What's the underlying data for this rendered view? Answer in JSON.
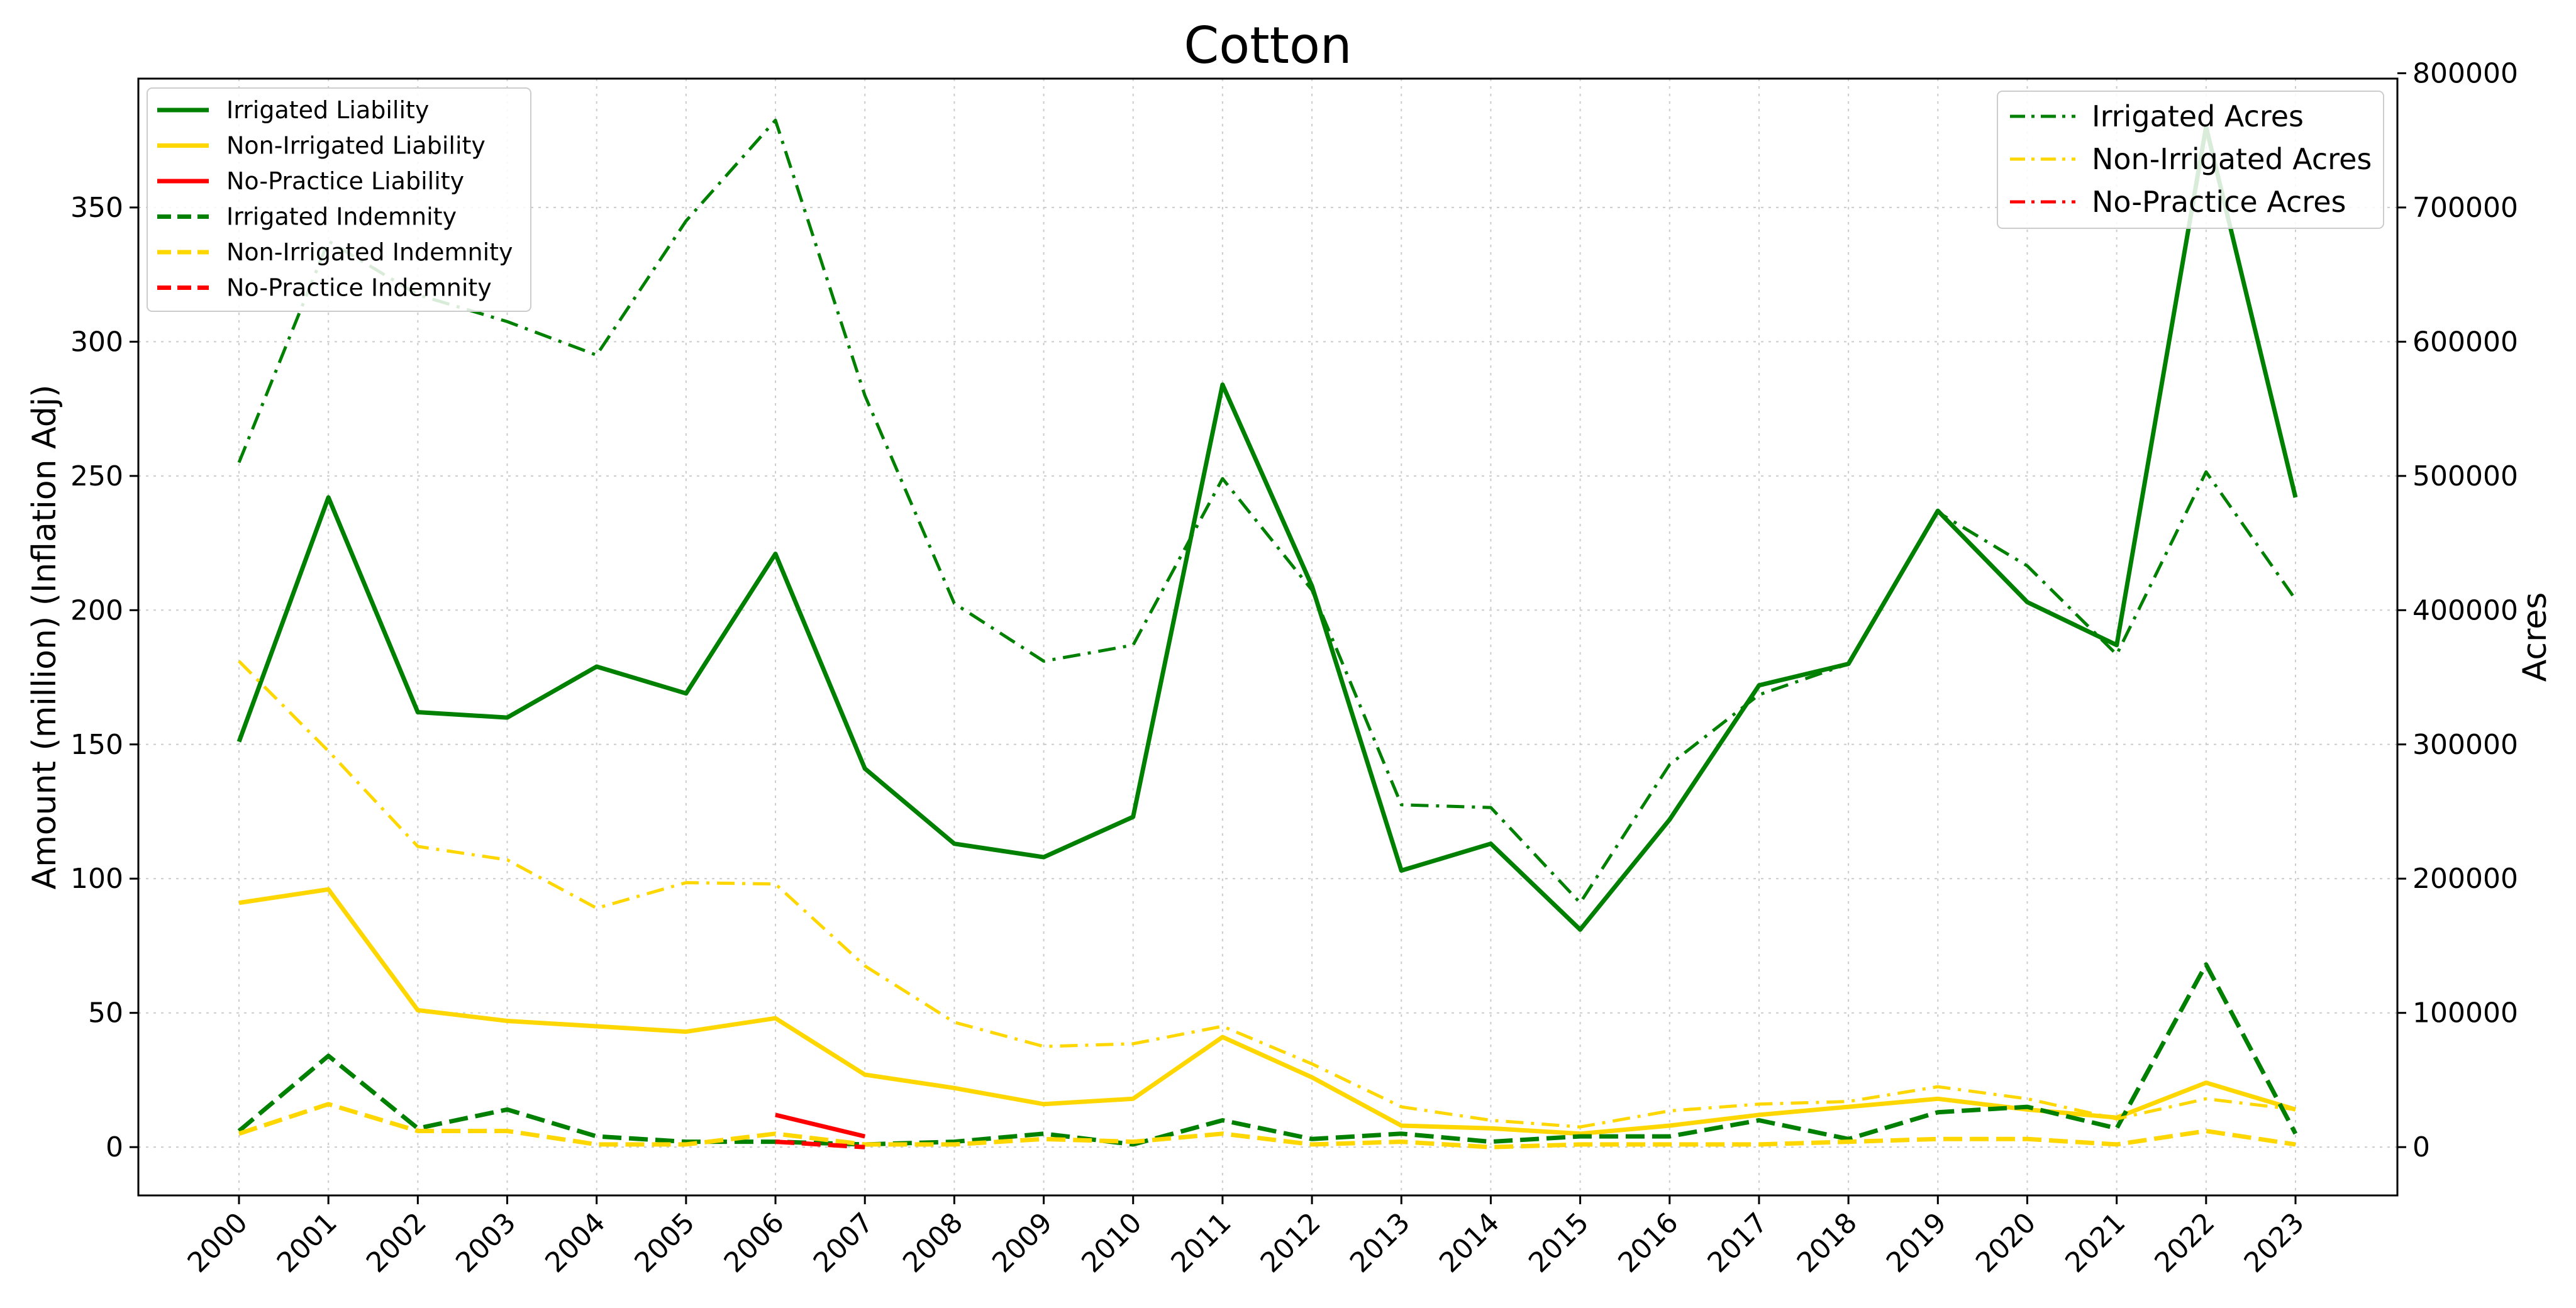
{
  "chart_data": {
    "type": "line",
    "title": "Cotton",
    "xlabel": "",
    "ylabel": "Amount (million) (Inflation Adj)",
    "ylabel_right": "Acres",
    "x": [
      "2000",
      "2001",
      "2002",
      "2003",
      "2004",
      "2005",
      "2006",
      "2007",
      "2008",
      "2009",
      "2010",
      "2011",
      "2012",
      "2013",
      "2014",
      "2015",
      "2016",
      "2017",
      "2018",
      "2019",
      "2020",
      "2021",
      "2022",
      "2023"
    ],
    "ylim": [
      -18,
      398
    ],
    "ylim_right": [
      -36000,
      796000
    ],
    "yticks": [
      0,
      50,
      100,
      150,
      200,
      250,
      300,
      350
    ],
    "yticks_right": [
      0,
      100000,
      200000,
      300000,
      400000,
      500000,
      600000,
      700000,
      800000
    ],
    "grid": true,
    "legend_left_position": "upper-left",
    "legend_right_position": "upper-right",
    "series": [
      {
        "name": "Irrigated Liability",
        "axis": "left",
        "style": "solid",
        "color": "#008000",
        "values": [
          151,
          242,
          162,
          160,
          179,
          169,
          221,
          141,
          113,
          108,
          123,
          284,
          209,
          103,
          113,
          81,
          122,
          172,
          180,
          237,
          203,
          187,
          380,
          242
        ]
      },
      {
        "name": "Non-Irrigated Liability",
        "axis": "left",
        "style": "solid",
        "color": "#FFD700",
        "values": [
          91,
          96,
          51,
          47,
          45,
          43,
          48,
          27,
          22,
          16,
          18,
          41,
          26,
          8,
          7,
          5,
          8,
          12,
          15,
          18,
          14,
          11,
          24,
          14
        ]
      },
      {
        "name": "No-Practice Liability",
        "axis": "left",
        "style": "solid",
        "color": "#FF0000",
        "values": [
          null,
          null,
          null,
          null,
          null,
          null,
          12,
          4,
          null,
          null,
          null,
          null,
          null,
          null,
          null,
          null,
          null,
          null,
          null,
          null,
          null,
          null,
          null,
          null
        ]
      },
      {
        "name": "Irrigated Indemnity",
        "axis": "left",
        "style": "dashed",
        "color": "#008000",
        "values": [
          6,
          34,
          7,
          14,
          4,
          2,
          2,
          1,
          2,
          5,
          1,
          10,
          3,
          5,
          2,
          4,
          4,
          10,
          3,
          13,
          15,
          7,
          68,
          5
        ]
      },
      {
        "name": "Non-Irrigated Indemnity",
        "axis": "left",
        "style": "dashed",
        "color": "#FFD700",
        "values": [
          5,
          16,
          6,
          6,
          1,
          1,
          5,
          1,
          1,
          3,
          2,
          5,
          1,
          2,
          0,
          1,
          1,
          1,
          2,
          3,
          3,
          1,
          6,
          1
        ]
      },
      {
        "name": "No-Practice Indemnity",
        "axis": "left",
        "style": "dashed",
        "color": "#FF0000",
        "values": [
          null,
          null,
          null,
          null,
          null,
          null,
          2,
          0,
          null,
          null,
          null,
          null,
          null,
          null,
          null,
          null,
          null,
          null,
          null,
          null,
          null,
          null,
          null,
          null
        ]
      },
      {
        "name": "Irrigated Acres",
        "axis": "right",
        "style": "dashdot",
        "color": "#008000",
        "values": [
          510000,
          675000,
          635000,
          615000,
          590000,
          690000,
          765000,
          560000,
          405000,
          362000,
          374000,
          498000,
          415000,
          255000,
          253000,
          182000,
          285000,
          337000,
          360000,
          473000,
          433000,
          367000,
          503000,
          408000
        ]
      },
      {
        "name": "Non-Irrigated Acres",
        "axis": "right",
        "style": "dashdot",
        "color": "#FFD700",
        "values": [
          362000,
          295000,
          224000,
          214000,
          178000,
          197000,
          196000,
          135000,
          93000,
          75000,
          77000,
          90000,
          62000,
          30000,
          20000,
          15000,
          27000,
          32000,
          34000,
          45000,
          36000,
          21000,
          36000,
          28000
        ]
      },
      {
        "name": "No-Practice Acres",
        "axis": "right",
        "style": "dashdot",
        "color": "#FF0000",
        "values": [
          null,
          null,
          null,
          null,
          null,
          null,
          null,
          null,
          null,
          null,
          null,
          null,
          null,
          null,
          null,
          null,
          null,
          null,
          null,
          null,
          null,
          null,
          null,
          null
        ]
      }
    ]
  }
}
